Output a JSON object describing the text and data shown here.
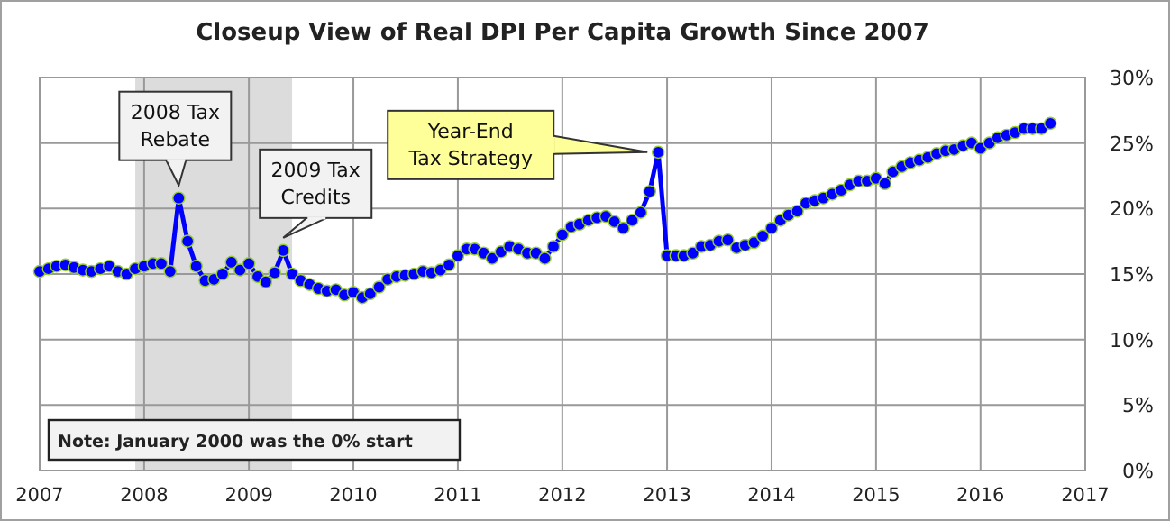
{
  "chart_data": {
    "type": "line",
    "title": "Closeup View of Real DPI Per Capita Growth Since 2007",
    "x": [
      "2007-01",
      "2007-02",
      "2007-03",
      "2007-04",
      "2007-05",
      "2007-06",
      "2007-07",
      "2007-08",
      "2007-09",
      "2007-10",
      "2007-11",
      "2007-12",
      "2008-01",
      "2008-02",
      "2008-03",
      "2008-04",
      "2008-05",
      "2008-06",
      "2008-07",
      "2008-08",
      "2008-09",
      "2008-10",
      "2008-11",
      "2008-12",
      "2009-01",
      "2009-02",
      "2009-03",
      "2009-04",
      "2009-05",
      "2009-06",
      "2009-07",
      "2009-08",
      "2009-09",
      "2009-10",
      "2009-11",
      "2009-12",
      "2010-01",
      "2010-02",
      "2010-03",
      "2010-04",
      "2010-05",
      "2010-06",
      "2010-07",
      "2010-08",
      "2010-09",
      "2010-10",
      "2010-11",
      "2010-12",
      "2011-01",
      "2011-02",
      "2011-03",
      "2011-04",
      "2011-05",
      "2011-06",
      "2011-07",
      "2011-08",
      "2011-09",
      "2011-10",
      "2011-11",
      "2011-12",
      "2012-01",
      "2012-02",
      "2012-03",
      "2012-04",
      "2012-05",
      "2012-06",
      "2012-07",
      "2012-08",
      "2012-09",
      "2012-10",
      "2012-11",
      "2012-12",
      "2013-01",
      "2013-02",
      "2013-03",
      "2013-04",
      "2013-05",
      "2013-06",
      "2013-07",
      "2013-08",
      "2013-09",
      "2013-10",
      "2013-11",
      "2013-12",
      "2014-01",
      "2014-02",
      "2014-03",
      "2014-04",
      "2014-05",
      "2014-06",
      "2014-07",
      "2014-08",
      "2014-09",
      "2014-10",
      "2014-11",
      "2014-12",
      "2015-01",
      "2015-02",
      "2015-03",
      "2015-04",
      "2015-05",
      "2015-06",
      "2015-07",
      "2015-08",
      "2015-09",
      "2015-10",
      "2015-11",
      "2015-12",
      "2016-01",
      "2016-02",
      "2016-03",
      "2016-04",
      "2016-05",
      "2016-06",
      "2016-07",
      "2016-08",
      "2016-09"
    ],
    "series": [
      {
        "color": "#0000ff",
        "values": [
          15.2,
          15.4,
          15.6,
          15.7,
          15.5,
          15.3,
          15.2,
          15.4,
          15.6,
          15.2,
          15.0,
          15.4,
          15.6,
          15.8,
          15.8,
          15.2,
          20.8,
          17.5,
          15.6,
          14.5,
          14.6,
          15.0,
          15.9,
          15.3,
          15.8,
          14.8,
          14.4,
          15.1,
          16.8,
          15.0,
          14.5,
          14.2,
          13.9,
          13.7,
          13.8,
          13.4,
          13.6,
          13.2,
          13.5,
          14.0,
          14.6,
          14.8,
          14.9,
          15.0,
          15.2,
          15.1,
          15.3,
          15.7,
          16.4,
          16.9,
          16.9,
          16.6,
          16.2,
          16.7,
          17.1,
          16.9,
          16.6,
          16.6,
          16.2,
          17.1,
          18.0,
          18.6,
          18.8,
          19.1,
          19.3,
          19.4,
          19.0,
          18.5,
          19.1,
          19.7,
          21.3,
          24.3,
          16.4,
          16.4,
          16.4,
          16.6,
          17.1,
          17.2,
          17.5,
          17.6,
          17.0,
          17.2,
          17.4,
          17.9,
          18.5,
          19.1,
          19.5,
          19.8,
          20.4,
          20.6,
          20.8,
          21.1,
          21.4,
          21.8,
          22.1,
          22.1,
          22.3,
          21.9,
          22.8,
          23.2,
          23.5,
          23.7,
          23.9,
          24.2,
          24.4,
          24.5,
          24.8,
          25.0,
          24.6,
          25.0,
          25.4,
          25.6,
          25.8,
          26.1,
          26.1,
          26.1,
          26.5
        ]
      }
    ],
    "xlim": [
      "2007",
      "2017"
    ],
    "xticks": [
      "2007",
      "2008",
      "2009",
      "2010",
      "2011",
      "2012",
      "2013",
      "2014",
      "2015",
      "2016",
      "2017"
    ],
    "ylim": [
      0,
      30
    ],
    "yticks": [
      {
        "value": 0,
        "label": "0%"
      },
      {
        "value": 5,
        "label": "5%"
      },
      {
        "value": 10,
        "label": "10%"
      },
      {
        "value": 15,
        "label": "15%"
      },
      {
        "value": 20,
        "label": "20%"
      },
      {
        "value": 25,
        "label": "25%"
      },
      {
        "value": 30,
        "label": "30%"
      }
    ],
    "grid": true,
    "marker": "circle",
    "line_style": "solid",
    "bands": [
      {
        "axis": "x",
        "from": "2007-12",
        "to": "2009-06",
        "color": "#dcdcdc"
      }
    ],
    "annotations": [
      {
        "text": "2008 Tax\nRebate",
        "x": "2008-05",
        "y": 20.8
      },
      {
        "text": "2009 Tax\nCredits",
        "x": "2009-05",
        "y": 16.8
      },
      {
        "text": "Year-End\nTax Strategy",
        "x": "2012-12",
        "y": 24.3
      },
      "Note: January  2000 was the 0% start"
    ]
  }
}
